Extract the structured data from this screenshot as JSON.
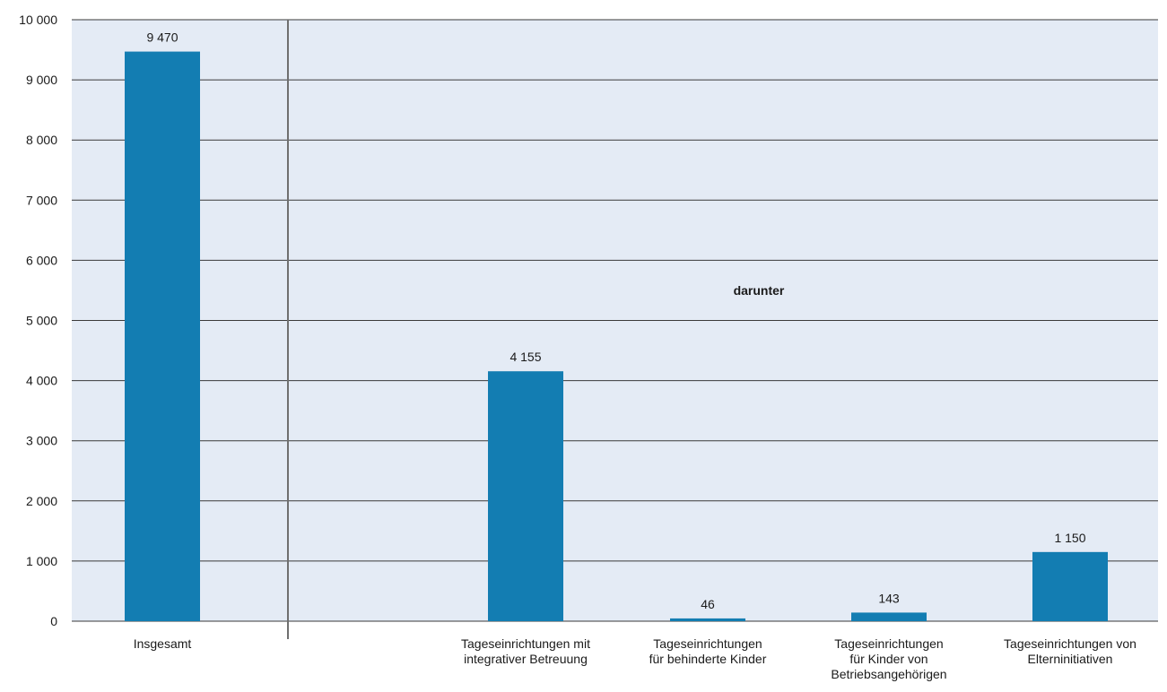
{
  "chart_data": {
    "type": "bar",
    "categories": [
      [
        "Insgesamt"
      ],
      [
        "Tageseinrichtungen mit",
        "integrativer Betreuung"
      ],
      [
        "Tageseinrichtungen",
        "für behinderte Kinder"
      ],
      [
        "Tageseinrichtungen",
        "für Kinder von",
        "Betriebsangehörigen"
      ],
      [
        "Tageseinrichtungen von",
        "Elterninitiativen"
      ]
    ],
    "values": [
      9470,
      4155,
      46,
      143,
      1150
    ],
    "value_labels": [
      "9 470",
      "4 155",
      "46",
      "143",
      "1 150"
    ],
    "group_label": "darunter",
    "ylim": [
      0,
      10000
    ],
    "y_ticks": [
      0,
      1000,
      2000,
      3000,
      4000,
      5000,
      6000,
      7000,
      8000,
      9000,
      10000
    ],
    "y_tick_labels": [
      "0",
      "1 000",
      "2 000",
      "3 000",
      "4 000",
      "5 000",
      "6 000",
      "7 000",
      "8 000",
      "9 000",
      "10 000"
    ],
    "grid": true,
    "colors": {
      "bar": "#137db2",
      "plot_background": "#e4ebf5",
      "grid": "#3a3a3a",
      "separator": "#6f6f6f"
    }
  }
}
